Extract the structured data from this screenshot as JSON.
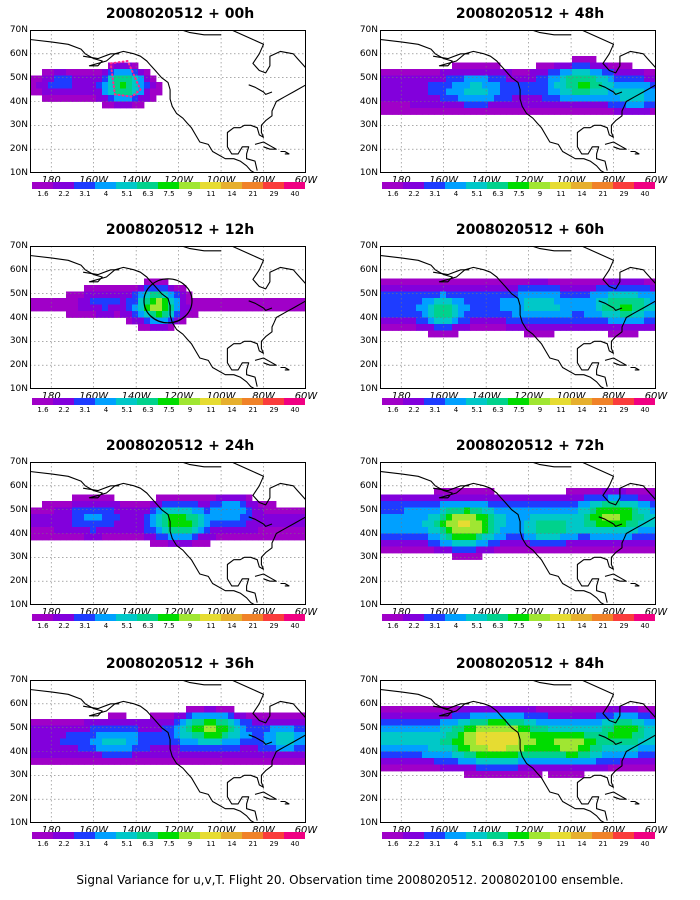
{
  "caption": "Signal Variance for u,v,T. Flight 20. Observation time 2008020512. 2008020100 ensemble.",
  "lat_labels": [
    "70N",
    "60N",
    "50N",
    "40N",
    "30N",
    "20N",
    "10N"
  ],
  "lon_labels": [
    "180",
    "160W",
    "140W",
    "120W",
    "100W",
    "80W",
    "60W"
  ],
  "colorbar": {
    "colors": [
      "#a000c8",
      "#8200dc",
      "#1e3cff",
      "#00a0ff",
      "#00c8c8",
      "#00d28c",
      "#00dc00",
      "#a0e632",
      "#e6dc32",
      "#e6af2d",
      "#f08228",
      "#fa3c3c",
      "#f00082"
    ],
    "labels": [
      "1.6",
      "2.2",
      "3.1",
      "4",
      "5.1",
      "6.3",
      "7.5",
      "9",
      "11",
      "14",
      "21",
      "29",
      "40"
    ]
  },
  "panels": [
    {
      "title": "2008020512 + 00h",
      "col": 0,
      "row": 0,
      "base": 0.9,
      "extent": 0.3,
      "feature": "dotted-box",
      "blobs": [
        {
          "lon": -146,
          "lat": 47,
          "amp": 6.5,
          "sx": 10,
          "sy": 7
        },
        {
          "lon": -175,
          "lat": 48,
          "amp": 2.2,
          "sx": 12,
          "sy": 6
        }
      ]
    },
    {
      "title": "2008020512 + 48h",
      "col": 1,
      "row": 0,
      "base": 1.9,
      "extent": 0.7,
      "feature": "none",
      "blobs": [
        {
          "lon": -95,
          "lat": 48,
          "amp": 5.0,
          "sx": 14,
          "sy": 7
        },
        {
          "lon": -145,
          "lat": 45,
          "amp": 2.5,
          "sx": 14,
          "sy": 7
        },
        {
          "lon": -70,
          "lat": 42,
          "amp": 3.0,
          "sx": 10,
          "sy": 6
        }
      ]
    },
    {
      "title": "2008020512 + 12h",
      "col": 0,
      "row": 1,
      "base": 1.1,
      "extent": 0.4,
      "feature": "circle",
      "blobs": [
        {
          "lon": -130,
          "lat": 45,
          "amp": 8.0,
          "sx": 9,
          "sy": 7
        },
        {
          "lon": -155,
          "lat": 47,
          "amp": 1.8,
          "sx": 12,
          "sy": 6
        }
      ]
    },
    {
      "title": "2008020512 + 60h",
      "col": 1,
      "row": 1,
      "base": 2.4,
      "extent": 0.8,
      "feature": "none",
      "blobs": [
        {
          "lon": -160,
          "lat": 42,
          "amp": 4.0,
          "sx": 8,
          "sy": 6
        },
        {
          "lon": -75,
          "lat": 45,
          "amp": 4.0,
          "sx": 14,
          "sy": 7
        },
        {
          "lon": -115,
          "lat": 45,
          "amp": 2.0,
          "sx": 14,
          "sy": 8
        }
      ]
    },
    {
      "title": "2008020512 + 24h",
      "col": 0,
      "row": 2,
      "base": 1.5,
      "extent": 0.55,
      "feature": "none",
      "blobs": [
        {
          "lon": -120,
          "lat": 45,
          "amp": 6.5,
          "sx": 12,
          "sy": 7
        },
        {
          "lon": -95,
          "lat": 50,
          "amp": 3.0,
          "sx": 10,
          "sy": 6
        },
        {
          "lon": -160,
          "lat": 48,
          "amp": 2.0,
          "sx": 12,
          "sy": 8
        }
      ]
    },
    {
      "title": "2008020512 + 72h",
      "col": 1,
      "row": 2,
      "base": 3.0,
      "extent": 0.85,
      "feature": "none",
      "blobs": [
        {
          "lon": -150,
          "lat": 43,
          "amp": 7.0,
          "sx": 12,
          "sy": 8
        },
        {
          "lon": -80,
          "lat": 48,
          "amp": 5.0,
          "sx": 14,
          "sy": 7
        },
        {
          "lon": -110,
          "lat": 42,
          "amp": 3.0,
          "sx": 10,
          "sy": 6
        }
      ]
    },
    {
      "title": "2008020512 + 36h",
      "col": 0,
      "row": 3,
      "base": 2.0,
      "extent": 0.7,
      "feature": "none",
      "blobs": [
        {
          "lon": -105,
          "lat": 50,
          "amp": 6.5,
          "sx": 14,
          "sy": 6
        },
        {
          "lon": -150,
          "lat": 44,
          "amp": 2.5,
          "sx": 12,
          "sy": 6
        },
        {
          "lon": -70,
          "lat": 46,
          "amp": 2.5,
          "sx": 10,
          "sy": 6
        }
      ]
    },
    {
      "title": "2008020512 + 84h",
      "col": 1,
      "row": 3,
      "base": 3.4,
      "extent": 0.9,
      "feature": "none",
      "blobs": [
        {
          "lon": -135,
          "lat": 45,
          "amp": 8.0,
          "sx": 18,
          "sy": 9
        },
        {
          "lon": -100,
          "lat": 42,
          "amp": 4.5,
          "sx": 14,
          "sy": 7
        },
        {
          "lon": -75,
          "lat": 50,
          "amp": 4.0,
          "sx": 10,
          "sy": 6
        }
      ]
    }
  ]
}
